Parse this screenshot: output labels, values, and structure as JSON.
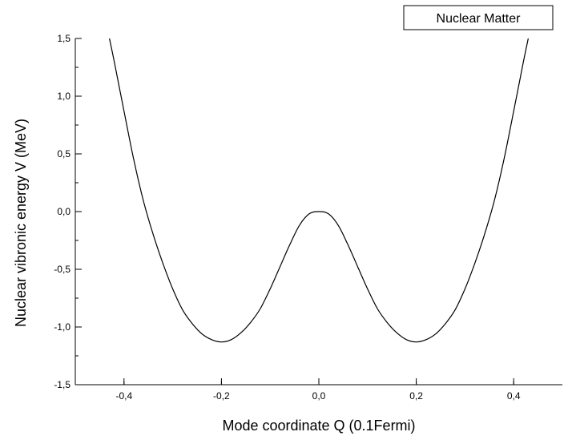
{
  "chart_data": {
    "type": "line",
    "title": "",
    "xlabel": "Mode coordinate Q (0.1Fermi)",
    "ylabel": "Nuclear vibronic energy V (MeV)",
    "xlim": [
      -0.5,
      0.5
    ],
    "ylim": [
      -1.5,
      1.5
    ],
    "x_ticks": [
      -0.4,
      -0.2,
      0.0,
      0.2,
      0.4
    ],
    "x_tick_labels": [
      "-0,4",
      "-0,2",
      "0,0",
      "0,2",
      "0,4"
    ],
    "y_ticks": [
      -1.5,
      -1.0,
      -0.5,
      0.0,
      0.5,
      1.0,
      1.5
    ],
    "y_tick_labels": [
      "-1,5",
      "-1,0",
      "-0,5",
      "0,0",
      "0,5",
      "1,0",
      "1,5"
    ],
    "grid": false,
    "legend_position": "top-right",
    "colors": {
      "line": "#000000",
      "axis": "#000000",
      "background": "#ffffff"
    },
    "series": [
      {
        "name": "Nuclear Matter",
        "x": [
          -0.43,
          -0.42,
          -0.4,
          -0.38,
          -0.36,
          -0.34,
          -0.32,
          -0.3,
          -0.28,
          -0.26,
          -0.24,
          -0.22,
          -0.2,
          -0.18,
          -0.16,
          -0.14,
          -0.12,
          -0.1,
          -0.08,
          -0.06,
          -0.04,
          -0.02,
          0.0,
          0.02,
          0.04,
          0.06,
          0.08,
          0.1,
          0.12,
          0.14,
          0.16,
          0.18,
          0.2,
          0.22,
          0.24,
          0.26,
          0.28,
          0.3,
          0.32,
          0.34,
          0.36,
          0.38,
          0.4,
          0.42,
          0.43
        ],
        "y": [
          1.5,
          1.3,
          0.87,
          0.45,
          0.09,
          -0.2,
          -0.45,
          -0.67,
          -0.85,
          -0.97,
          -1.06,
          -1.11,
          -1.13,
          -1.11,
          -1.05,
          -0.96,
          -0.84,
          -0.67,
          -0.48,
          -0.29,
          -0.12,
          -0.02,
          0.0,
          -0.02,
          -0.12,
          -0.29,
          -0.48,
          -0.67,
          -0.84,
          -0.96,
          -1.05,
          -1.11,
          -1.13,
          -1.11,
          -1.06,
          -0.97,
          -0.85,
          -0.67,
          -0.45,
          -0.2,
          0.09,
          0.45,
          0.87,
          1.3,
          1.5
        ]
      }
    ]
  }
}
